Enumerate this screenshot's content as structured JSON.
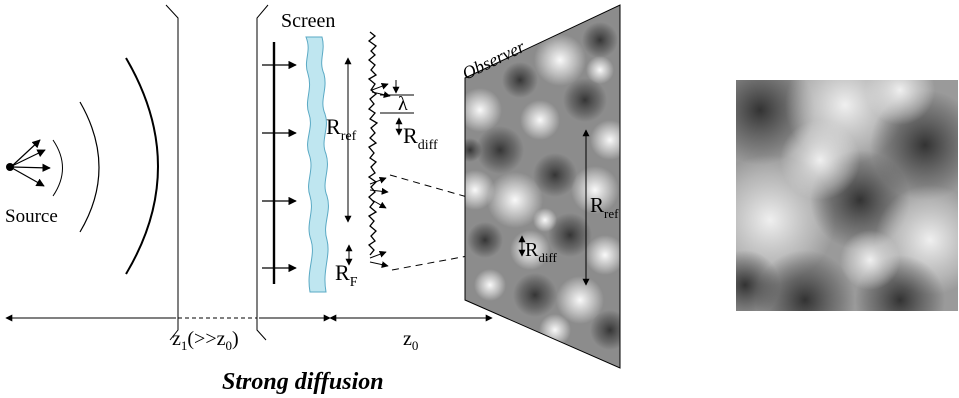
{
  "labels": {
    "screen": "Screen",
    "source": "Source",
    "observer": "Observer",
    "lambda": "λ",
    "r_ref_left_base": "R",
    "r_ref_left_sub": "ref",
    "r_diff_left_base": "R",
    "r_diff_left_sub": "diff",
    "r_f_base": "R",
    "r_f_sub": "F",
    "r_ref_right_base": "R",
    "r_ref_right_sub": "ref",
    "r_diff_right_base": "R",
    "r_diff_right_sub": "diff",
    "z1_base": "z",
    "z1_sub": "1",
    "z1_paren_open": "(>>z",
    "z1_paren_sub": "0",
    "z1_paren_close": ")",
    "z0_base": "z",
    "z0_sub": "0",
    "caption": "Strong diffusion"
  },
  "colors": {
    "screen_fill": "#bfe6f0",
    "screen_stroke": "#5aa9c4",
    "ink": "#000000"
  }
}
